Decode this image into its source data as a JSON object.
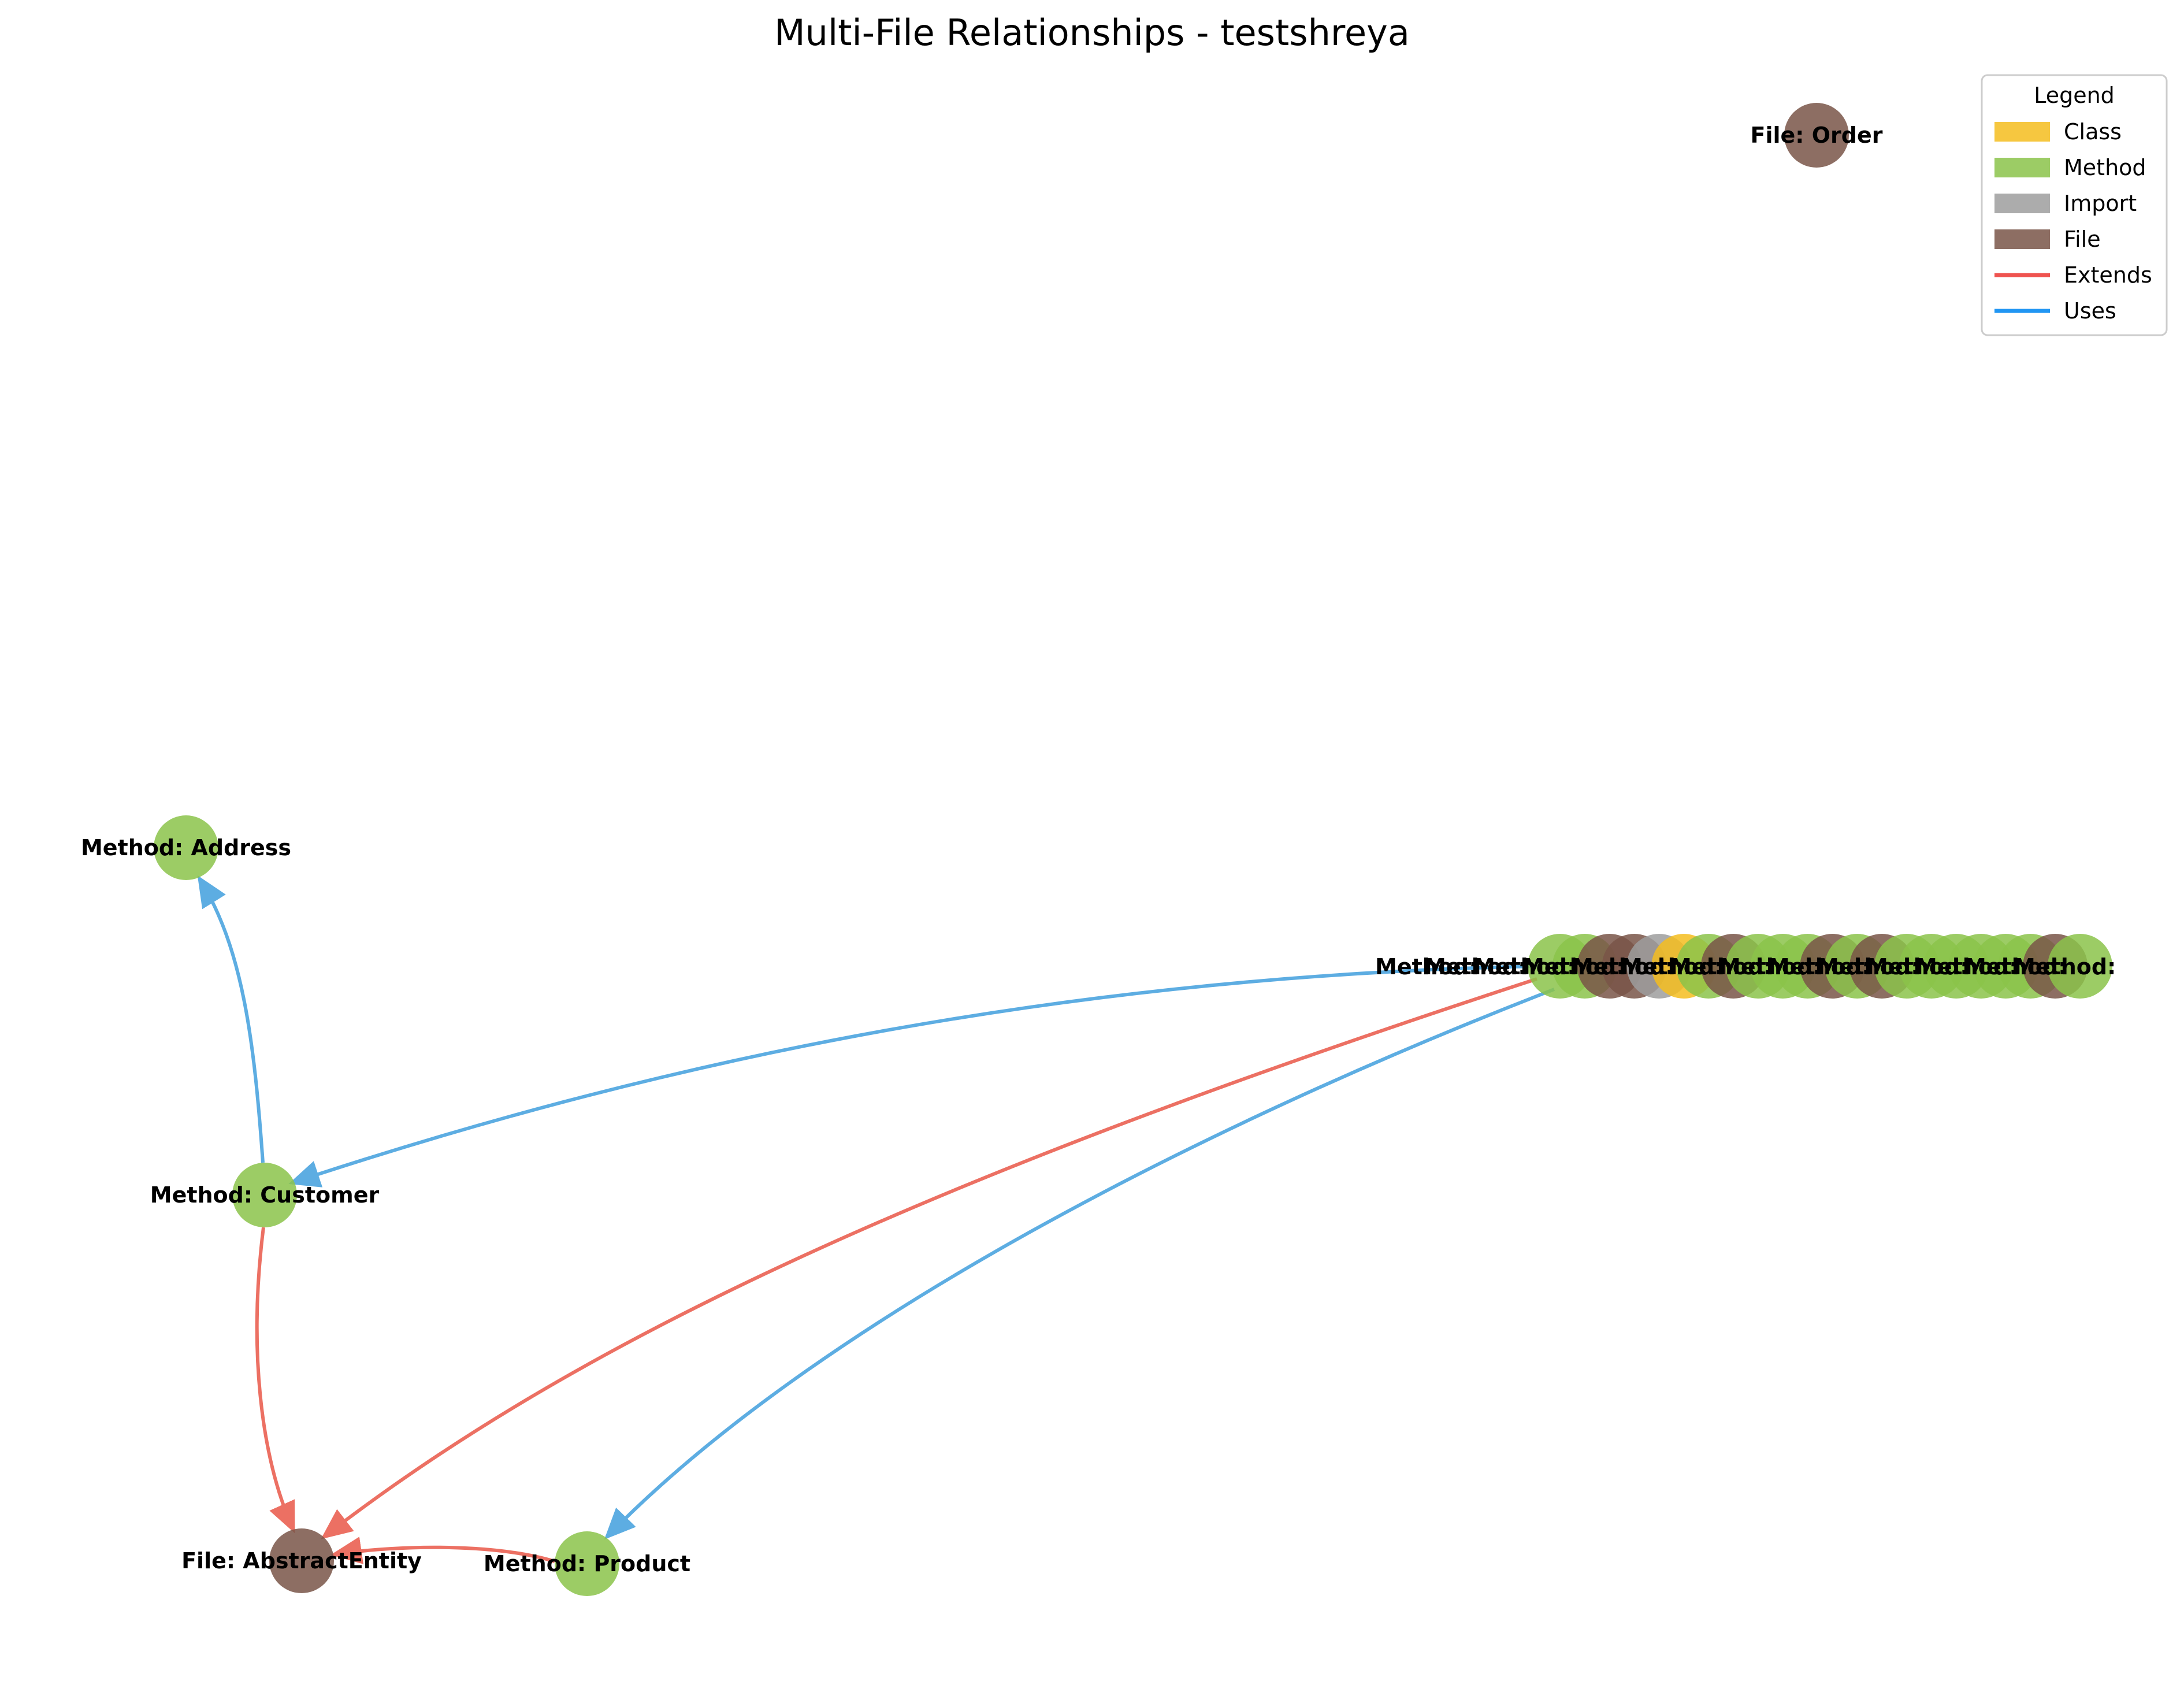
{
  "title": "Multi-File Relationships - testshreya",
  "colors": {
    "class": "#f5bd1f",
    "method": "#8bc34a",
    "import": "#9e9e9e",
    "file": "#795548",
    "extends": "#ef5350",
    "uses": "#2196f3"
  },
  "legend": {
    "title": "Legend",
    "items": [
      {
        "label": "Class",
        "kind": "patch",
        "color_key": "class"
      },
      {
        "label": "Method",
        "kind": "patch",
        "color_key": "method"
      },
      {
        "label": "Import",
        "kind": "patch",
        "color_key": "import"
      },
      {
        "label": "File",
        "kind": "patch",
        "color_key": "file"
      },
      {
        "label": "Extends",
        "kind": "line",
        "color_key": "extends"
      },
      {
        "label": "Uses",
        "kind": "line",
        "color_key": "uses"
      }
    ]
  },
  "nodes": [
    {
      "id": "order",
      "label": "File: Order",
      "type": "file"
    },
    {
      "id": "address",
      "label": "Method: Address",
      "type": "method"
    },
    {
      "id": "customer",
      "label": "Method: Customer",
      "type": "method"
    },
    {
      "id": "abstract",
      "label": "File: AbstractEntity",
      "type": "file"
    },
    {
      "id": "product",
      "label": "Method: Product",
      "type": "method"
    }
  ],
  "edges": [
    {
      "from": "customer",
      "to": "address",
      "type": "uses"
    },
    {
      "from": "customer",
      "to": "abstract",
      "type": "extends"
    },
    {
      "from": "product",
      "to": "abstract",
      "type": "extends"
    },
    {
      "from": "cluster",
      "to": "customer",
      "type": "uses"
    },
    {
      "from": "cluster",
      "to": "abstract",
      "type": "extends"
    },
    {
      "from": "cluster",
      "to": "product",
      "type": "uses"
    }
  ],
  "cluster": {
    "label_fragment": "Method: "
  }
}
